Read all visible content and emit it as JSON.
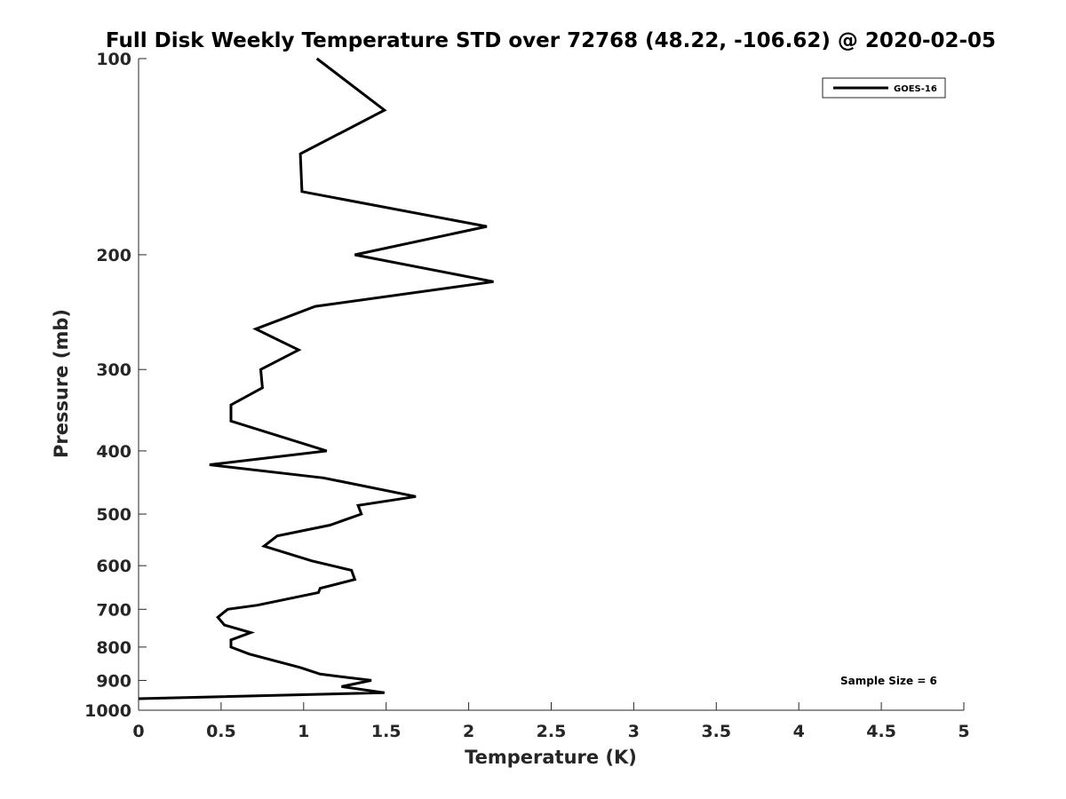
{
  "chart_data": {
    "type": "line",
    "title": "Full Disk Weekly Temperature STD over 72768 (48.22, -106.62) @ 2020-02-05",
    "xlabel": "Temperature (K)",
    "ylabel": "Pressure (mb)",
    "xlim": [
      0,
      5
    ],
    "ylim": [
      100,
      1000
    ],
    "y_scale": "log",
    "y_reversed": true,
    "x_ticks": [
      0,
      0.5,
      1,
      1.5,
      2,
      2.5,
      3,
      3.5,
      4,
      4.5,
      5
    ],
    "x_tick_labels": [
      "0",
      "0.5",
      "1",
      "1.5",
      "2",
      "2.5",
      "3",
      "3.5",
      "4",
      "4.5",
      "5"
    ],
    "y_ticks": [
      100,
      200,
      300,
      400,
      500,
      600,
      700,
      800,
      900,
      1000
    ],
    "y_tick_labels": [
      "100",
      "200",
      "300",
      "400",
      "500",
      "600",
      "700",
      "800",
      "900",
      "1000"
    ],
    "grid": false,
    "legend_position": "top-right",
    "series": [
      {
        "name": "GOES-16",
        "color": "#000000",
        "points": [
          [
            1.08,
            100
          ],
          [
            1.49,
            120
          ],
          [
            0.98,
            140
          ],
          [
            0.99,
            160
          ],
          [
            2.11,
            181
          ],
          [
            1.31,
            200
          ],
          [
            2.15,
            220
          ],
          [
            1.07,
            240
          ],
          [
            0.71,
            260
          ],
          [
            0.97,
            280
          ],
          [
            0.74,
            300
          ],
          [
            0.75,
            320
          ],
          [
            0.56,
            340
          ],
          [
            0.56,
            360
          ],
          [
            1.14,
            400
          ],
          [
            0.43,
            420
          ],
          [
            1.12,
            440
          ],
          [
            1.68,
            470
          ],
          [
            1.33,
            485
          ],
          [
            1.35,
            500
          ],
          [
            1.16,
            520
          ],
          [
            0.84,
            540
          ],
          [
            0.76,
            560
          ],
          [
            1.05,
            590
          ],
          [
            1.29,
            610
          ],
          [
            1.31,
            630
          ],
          [
            1.1,
            650
          ],
          [
            1.09,
            660
          ],
          [
            0.72,
            690
          ],
          [
            0.54,
            700
          ],
          [
            0.48,
            720
          ],
          [
            0.52,
            740
          ],
          [
            0.68,
            760
          ],
          [
            0.56,
            780
          ],
          [
            0.56,
            800
          ],
          [
            0.67,
            820
          ],
          [
            0.98,
            860
          ],
          [
            1.1,
            880
          ],
          [
            1.41,
            900
          ],
          [
            1.23,
            920
          ],
          [
            1.49,
            940
          ],
          [
            0.0,
            960
          ]
        ]
      }
    ],
    "annotation": "Sample Size = 6"
  }
}
